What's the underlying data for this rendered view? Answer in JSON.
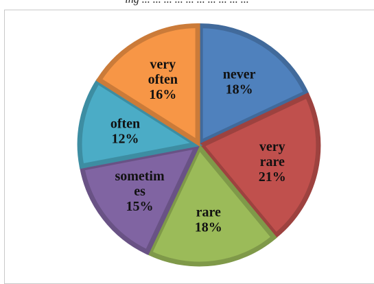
{
  "caption": "ing ... ... ... ... ... ... ... ... ... ...",
  "chart_data": {
    "type": "pie",
    "start_angle_deg": 0,
    "direction": "clockwise",
    "slices": [
      {
        "label_lines": [
          "never",
          "18%"
        ],
        "category": "never",
        "value": 18,
        "color": "#4F81BD"
      },
      {
        "label_lines": [
          "very",
          "rare",
          "21%"
        ],
        "category": "very rare",
        "value": 21,
        "color": "#C0504D"
      },
      {
        "label_lines": [
          "rare",
          "18%"
        ],
        "category": "rare",
        "value": 18,
        "color": "#9BBB59"
      },
      {
        "label_lines": [
          "sometim",
          "es",
          "15%"
        ],
        "category": "sometimes",
        "value": 15,
        "color": "#8064A2"
      },
      {
        "label_lines": [
          "often",
          "12%"
        ],
        "category": "often",
        "value": 12,
        "color": "#4BACC6"
      },
      {
        "label_lines": [
          "very",
          "often",
          "16%"
        ],
        "category": "very often",
        "value": 16,
        "color": "#F79646"
      }
    ]
  }
}
